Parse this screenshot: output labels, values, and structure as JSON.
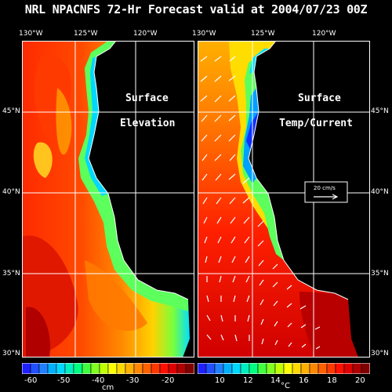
{
  "title": "NRL NPACNFS 72-Hr Forecast valid at 2004/07/23 00Z",
  "left_panel": {
    "label_line1": "Surface",
    "label_line2": "Elevation",
    "lon_labels": [
      "130°W",
      "125°W",
      "120°W"
    ],
    "colorbar": {
      "ticks": [
        "-60",
        "-50",
        "-40",
        "-30",
        "-20"
      ],
      "unit": "cm"
    }
  },
  "right_panel": {
    "label_line1": "Surface",
    "label_line2": "Temp/Current",
    "lon_labels": [
      "130°W",
      "125°W",
      "120°W"
    ],
    "lat_labels": [
      "45°N",
      "40°N",
      "35°N",
      "30°N"
    ],
    "vector_scale": "20 cm/s",
    "colorbar": {
      "ticks": [
        "10",
        "12",
        "14",
        "16",
        "18",
        "20"
      ],
      "unit": "°C"
    }
  },
  "lat_labels": [
    "45°N",
    "40°N",
    "35°N",
    "30°N"
  ],
  "colors": {
    "background": "#000000",
    "land": "#000000",
    "text": "#ffffff"
  }
}
